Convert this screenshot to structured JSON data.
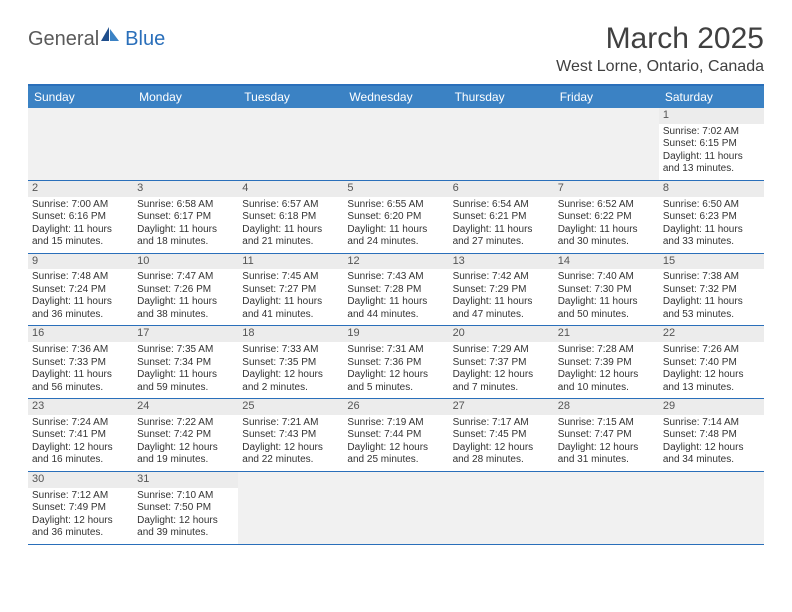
{
  "logo": {
    "word1": "General",
    "word2": "Blue",
    "color1": "#5a5a5a",
    "color2": "#2a6fba"
  },
  "title": "March 2025",
  "location": "West Lorne, Ontario, Canada",
  "colors": {
    "header_bar": "#3b82c4",
    "border": "#2a6fba",
    "daynum_bg": "#ececec",
    "blank_bg": "#f1f1f1",
    "text": "#333333"
  },
  "daysOfWeek": [
    "Sunday",
    "Monday",
    "Tuesday",
    "Wednesday",
    "Thursday",
    "Friday",
    "Saturday"
  ],
  "leadingBlanks": 6,
  "trailingBlanks": 5,
  "days": [
    {
      "n": 1,
      "sunrise": "7:02 AM",
      "sunset": "6:15 PM",
      "dl": "11 hours and 13 minutes."
    },
    {
      "n": 2,
      "sunrise": "7:00 AM",
      "sunset": "6:16 PM",
      "dl": "11 hours and 15 minutes."
    },
    {
      "n": 3,
      "sunrise": "6:58 AM",
      "sunset": "6:17 PM",
      "dl": "11 hours and 18 minutes."
    },
    {
      "n": 4,
      "sunrise": "6:57 AM",
      "sunset": "6:18 PM",
      "dl": "11 hours and 21 minutes."
    },
    {
      "n": 5,
      "sunrise": "6:55 AM",
      "sunset": "6:20 PM",
      "dl": "11 hours and 24 minutes."
    },
    {
      "n": 6,
      "sunrise": "6:54 AM",
      "sunset": "6:21 PM",
      "dl": "11 hours and 27 minutes."
    },
    {
      "n": 7,
      "sunrise": "6:52 AM",
      "sunset": "6:22 PM",
      "dl": "11 hours and 30 minutes."
    },
    {
      "n": 8,
      "sunrise": "6:50 AM",
      "sunset": "6:23 PM",
      "dl": "11 hours and 33 minutes."
    },
    {
      "n": 9,
      "sunrise": "7:48 AM",
      "sunset": "7:24 PM",
      "dl": "11 hours and 36 minutes."
    },
    {
      "n": 10,
      "sunrise": "7:47 AM",
      "sunset": "7:26 PM",
      "dl": "11 hours and 38 minutes."
    },
    {
      "n": 11,
      "sunrise": "7:45 AM",
      "sunset": "7:27 PM",
      "dl": "11 hours and 41 minutes."
    },
    {
      "n": 12,
      "sunrise": "7:43 AM",
      "sunset": "7:28 PM",
      "dl": "11 hours and 44 minutes."
    },
    {
      "n": 13,
      "sunrise": "7:42 AM",
      "sunset": "7:29 PM",
      "dl": "11 hours and 47 minutes."
    },
    {
      "n": 14,
      "sunrise": "7:40 AM",
      "sunset": "7:30 PM",
      "dl": "11 hours and 50 minutes."
    },
    {
      "n": 15,
      "sunrise": "7:38 AM",
      "sunset": "7:32 PM",
      "dl": "11 hours and 53 minutes."
    },
    {
      "n": 16,
      "sunrise": "7:36 AM",
      "sunset": "7:33 PM",
      "dl": "11 hours and 56 minutes."
    },
    {
      "n": 17,
      "sunrise": "7:35 AM",
      "sunset": "7:34 PM",
      "dl": "11 hours and 59 minutes."
    },
    {
      "n": 18,
      "sunrise": "7:33 AM",
      "sunset": "7:35 PM",
      "dl": "12 hours and 2 minutes."
    },
    {
      "n": 19,
      "sunrise": "7:31 AM",
      "sunset": "7:36 PM",
      "dl": "12 hours and 5 minutes."
    },
    {
      "n": 20,
      "sunrise": "7:29 AM",
      "sunset": "7:37 PM",
      "dl": "12 hours and 7 minutes."
    },
    {
      "n": 21,
      "sunrise": "7:28 AM",
      "sunset": "7:39 PM",
      "dl": "12 hours and 10 minutes."
    },
    {
      "n": 22,
      "sunrise": "7:26 AM",
      "sunset": "7:40 PM",
      "dl": "12 hours and 13 minutes."
    },
    {
      "n": 23,
      "sunrise": "7:24 AM",
      "sunset": "7:41 PM",
      "dl": "12 hours and 16 minutes."
    },
    {
      "n": 24,
      "sunrise": "7:22 AM",
      "sunset": "7:42 PM",
      "dl": "12 hours and 19 minutes."
    },
    {
      "n": 25,
      "sunrise": "7:21 AM",
      "sunset": "7:43 PM",
      "dl": "12 hours and 22 minutes."
    },
    {
      "n": 26,
      "sunrise": "7:19 AM",
      "sunset": "7:44 PM",
      "dl": "12 hours and 25 minutes."
    },
    {
      "n": 27,
      "sunrise": "7:17 AM",
      "sunset": "7:45 PM",
      "dl": "12 hours and 28 minutes."
    },
    {
      "n": 28,
      "sunrise": "7:15 AM",
      "sunset": "7:47 PM",
      "dl": "12 hours and 31 minutes."
    },
    {
      "n": 29,
      "sunrise": "7:14 AM",
      "sunset": "7:48 PM",
      "dl": "12 hours and 34 minutes."
    },
    {
      "n": 30,
      "sunrise": "7:12 AM",
      "sunset": "7:49 PM",
      "dl": "12 hours and 36 minutes."
    },
    {
      "n": 31,
      "sunrise": "7:10 AM",
      "sunset": "7:50 PM",
      "dl": "12 hours and 39 minutes."
    }
  ],
  "labels": {
    "sunrise": "Sunrise: ",
    "sunset": "Sunset: ",
    "daylight": "Daylight: "
  }
}
